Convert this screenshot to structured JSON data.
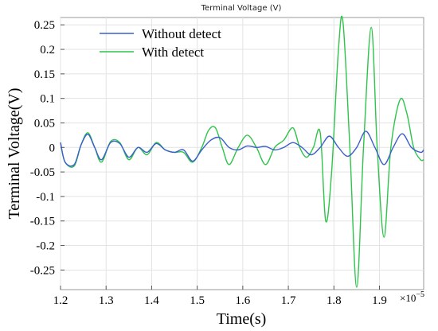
{
  "chart_data": {
    "type": "line",
    "title": "Terminal Voltage (V)",
    "xlabel": "Time(s)",
    "ylabel": "Terminal Voltage(V)",
    "x_multiplier_base": "×10",
    "x_multiplier_exp": "−5",
    "xlim": [
      1.2,
      1.997
    ],
    "ylim": [
      -0.29,
      0.265
    ],
    "xticks": [
      1.2,
      1.3,
      1.4,
      1.5,
      1.6,
      1.7,
      1.8,
      1.9
    ],
    "xtick_labels": [
      "1.2",
      "1.3",
      "1.4",
      "1.5",
      "1.6",
      "1.7",
      "1.8",
      "1.9"
    ],
    "yticks": [
      0.25,
      0.2,
      0.15,
      0.1,
      0.05,
      0,
      -0.05,
      -0.1,
      -0.15,
      -0.2,
      -0.25
    ],
    "ytick_labels": [
      "0.25",
      "0.2",
      "0.15",
      "0.1",
      "0.05",
      "0",
      "-0.05",
      "-0.1",
      "-0.15",
      "-0.2",
      "-0.25"
    ],
    "grid": true,
    "legend_position": "top-left",
    "series": [
      {
        "name": "Without detect",
        "color": "#3a5fcd",
        "x": [
          1.2,
          1.21,
          1.23,
          1.245,
          1.26,
          1.275,
          1.29,
          1.31,
          1.33,
          1.35,
          1.37,
          1.39,
          1.41,
          1.43,
          1.45,
          1.47,
          1.49,
          1.51,
          1.53,
          1.55,
          1.57,
          1.59,
          1.61,
          1.63,
          1.65,
          1.67,
          1.69,
          1.71,
          1.73,
          1.75,
          1.77,
          1.79,
          1.81,
          1.83,
          1.85,
          1.87,
          1.89,
          1.91,
          1.93,
          1.95,
          1.97,
          1.99,
          1.997
        ],
        "y": [
          0.01,
          -0.03,
          -0.035,
          0.005,
          0.027,
          0.0,
          -0.025,
          0.01,
          0.008,
          -0.02,
          0.0,
          -0.01,
          0.008,
          -0.005,
          -0.01,
          -0.005,
          -0.028,
          -0.005,
          0.015,
          0.02,
          0.0,
          -0.005,
          0.003,
          0.0,
          0.002,
          -0.005,
          0.0,
          0.01,
          0.0,
          -0.015,
          0.0,
          0.023,
          0.0,
          -0.018,
          0.0,
          0.033,
          0.0,
          -0.035,
          0.0,
          0.028,
          0.0,
          -0.01,
          -0.005
        ]
      },
      {
        "name": "With detect",
        "color": "#2ec44a",
        "x": [
          1.2,
          1.21,
          1.23,
          1.245,
          1.26,
          1.275,
          1.29,
          1.31,
          1.33,
          1.35,
          1.37,
          1.39,
          1.41,
          1.43,
          1.45,
          1.47,
          1.49,
          1.51,
          1.525,
          1.54,
          1.555,
          1.57,
          1.59,
          1.61,
          1.63,
          1.65,
          1.67,
          1.69,
          1.71,
          1.725,
          1.74,
          1.755,
          1.77,
          1.782,
          1.795,
          1.81,
          1.82,
          1.835,
          1.85,
          1.865,
          1.882,
          1.895,
          1.91,
          1.925,
          1.945,
          1.96,
          1.975,
          1.99,
          1.997
        ],
        "y": [
          0.01,
          -0.03,
          -0.038,
          0.005,
          0.03,
          0.0,
          -0.03,
          0.012,
          0.01,
          -0.025,
          0.0,
          -0.015,
          0.01,
          -0.005,
          -0.01,
          -0.01,
          -0.03,
          0.0,
          0.035,
          0.04,
          0.0,
          -0.035,
          0.0,
          0.025,
          0.0,
          -0.035,
          0.0,
          0.015,
          0.04,
          0.0,
          -0.02,
          0.0,
          0.03,
          -0.15,
          -0.05,
          0.2,
          0.255,
          0.0,
          -0.285,
          0.0,
          0.245,
          0.0,
          -0.183,
          0.0,
          0.097,
          0.07,
          0.0,
          -0.025,
          -0.025
        ]
      }
    ]
  }
}
